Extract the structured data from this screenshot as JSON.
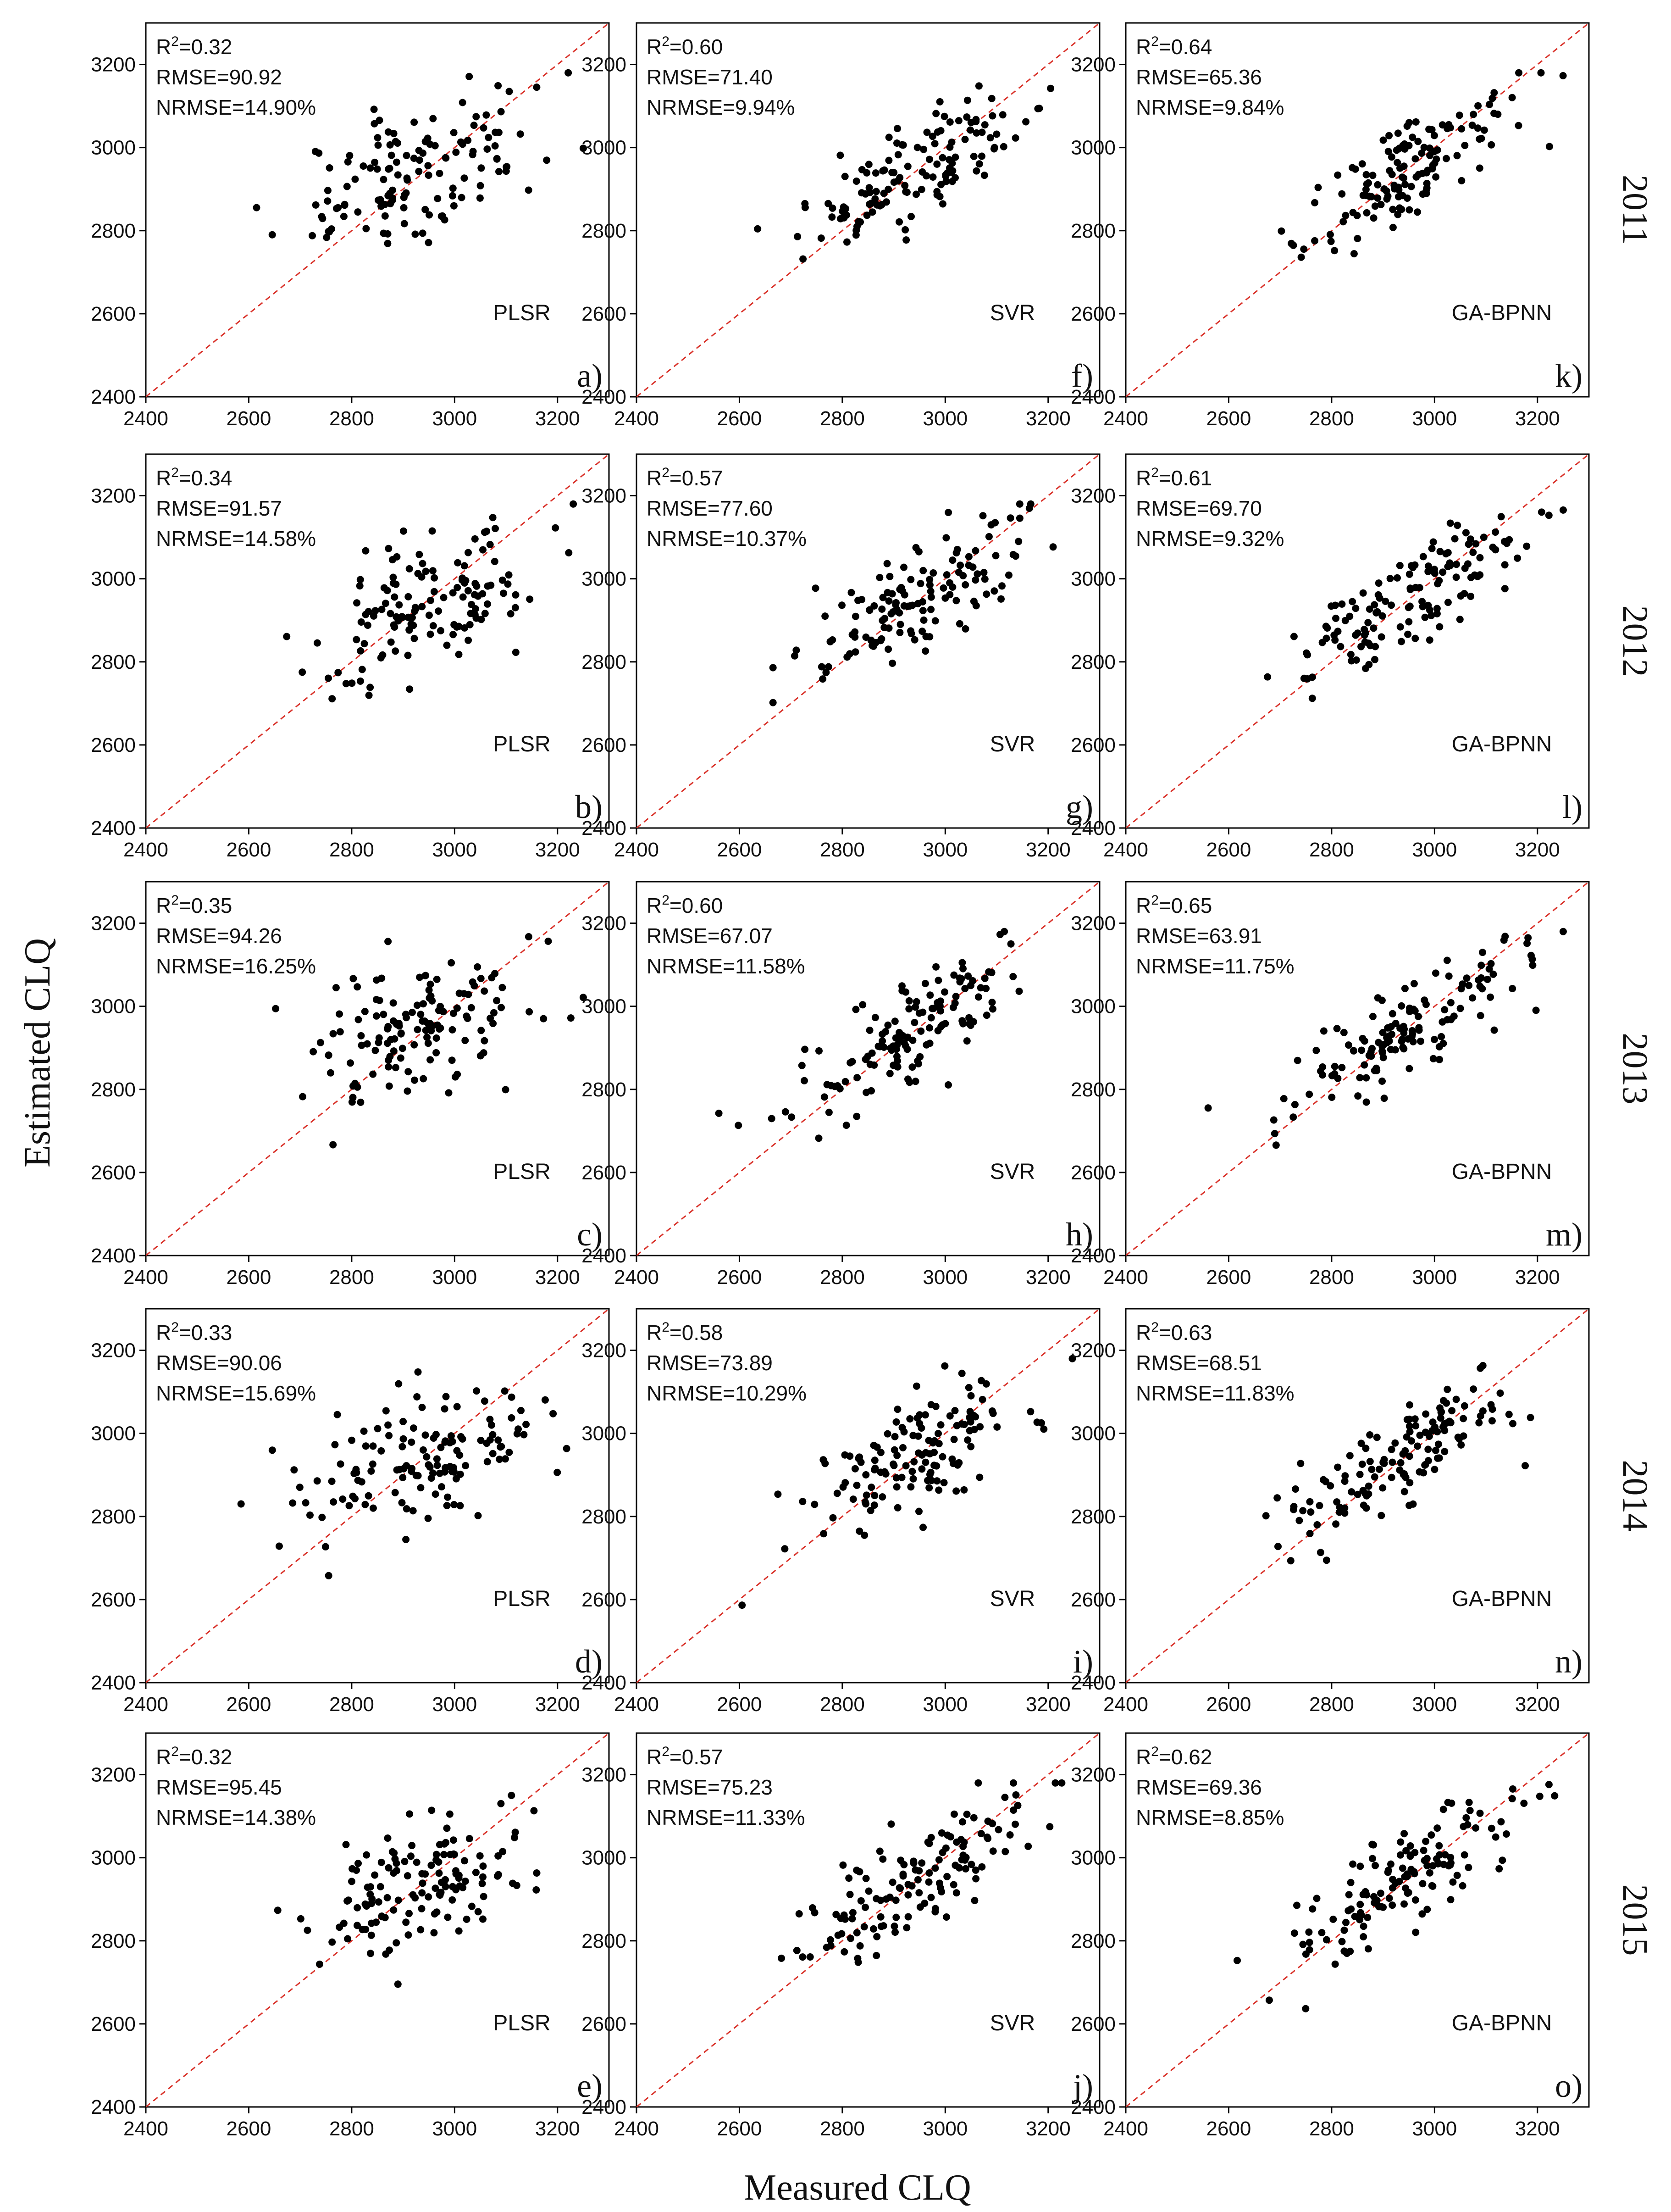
{
  "figure": {
    "xlabel": "Measured CLQ",
    "ylabel": "Estimated CLQ",
    "models": [
      "PLSR",
      "SVR",
      "GA-BPNN"
    ],
    "years": [
      "2011",
      "2012",
      "2013",
      "2014",
      "2015"
    ],
    "reference_line_color": "#d9322a",
    "point_color": "#000000"
  },
  "chart_data": [
    {
      "type": "scatter",
      "id": "a",
      "panel_label": "a)",
      "model": "PLSR",
      "year": "2011",
      "r2": "0.32",
      "rmse": "90.92",
      "nrmse": "14.90%",
      "r2_display": "R2=0.32",
      "rmse_display": "RMSE=90.92",
      "nrmse_display": "NRMSE=14.90%",
      "xlim": [
        2400,
        3300
      ],
      "ylim": [
        2400,
        3300
      ],
      "xticks": [
        2400,
        2600,
        2800,
        3000,
        3200
      ],
      "yticks": [
        2400,
        2600,
        2800,
        3000,
        3200
      ]
    },
    {
      "type": "scatter",
      "id": "b",
      "panel_label": "b)",
      "model": "PLSR",
      "year": "2012",
      "r2": "0.34",
      "rmse": "91.57",
      "nrmse": "14.58%",
      "r2_display": "R2=0.34",
      "rmse_display": "RMSE=91.57",
      "nrmse_display": "NRMSE=14.58%",
      "xlim": [
        2400,
        3300
      ],
      "ylim": [
        2400,
        3300
      ],
      "xticks": [
        2400,
        2600,
        2800,
        3000,
        3200
      ],
      "yticks": [
        2400,
        2600,
        2800,
        3000,
        3200
      ]
    },
    {
      "type": "scatter",
      "id": "c",
      "panel_label": "c)",
      "model": "PLSR",
      "year": "2013",
      "r2": "0.35",
      "rmse": "94.26",
      "nrmse": "16.25%",
      "r2_display": "R2=0.35",
      "rmse_display": "RMSE=94.26",
      "nrmse_display": "NRMSE=16.25%",
      "xlim": [
        2400,
        3300
      ],
      "ylim": [
        2400,
        3300
      ],
      "xticks": [
        2400,
        2600,
        2800,
        3000,
        3200
      ],
      "yticks": [
        2400,
        2600,
        2800,
        3000,
        3200
      ]
    },
    {
      "type": "scatter",
      "id": "d",
      "panel_label": "d)",
      "model": "PLSR",
      "year": "2014",
      "r2": "0.33",
      "rmse": "90.06",
      "nrmse": "15.69%",
      "r2_display": "R2=0.33",
      "rmse_display": "RMSE=90.06",
      "nrmse_display": "NRMSE=15.69%",
      "xlim": [
        2400,
        3300
      ],
      "ylim": [
        2400,
        3300
      ],
      "xticks": [
        2400,
        2600,
        2800,
        3000,
        3200
      ],
      "yticks": [
        2400,
        2600,
        2800,
        3000,
        3200
      ]
    },
    {
      "type": "scatter",
      "id": "e",
      "panel_label": "e)",
      "model": "PLSR",
      "year": "2015",
      "r2": "0.32",
      "rmse": "95.45",
      "nrmse": "14.38%",
      "r2_display": "R2=0.32",
      "rmse_display": "RMSE=95.45",
      "nrmse_display": "NRMSE=14.38%",
      "xlim": [
        2400,
        3300
      ],
      "ylim": [
        2400,
        3300
      ],
      "xticks": [
        2400,
        2600,
        2800,
        3000,
        3200
      ],
      "yticks": [
        2400,
        2600,
        2800,
        3000,
        3200
      ]
    },
    {
      "type": "scatter",
      "id": "f",
      "panel_label": "f)",
      "model": "SVR",
      "year": "2011",
      "r2": "0.60",
      "rmse": "71.40",
      "nrmse": "9.94%",
      "r2_display": "R2=0.60",
      "rmse_display": "RMSE=71.40",
      "nrmse_display": "NRMSE=9.94%",
      "xlim": [
        2400,
        3300
      ],
      "ylim": [
        2400,
        3300
      ],
      "xticks": [
        2400,
        2600,
        2800,
        3000,
        3200
      ],
      "yticks": [
        2400,
        2600,
        2800,
        3000,
        3200
      ]
    },
    {
      "type": "scatter",
      "id": "g",
      "panel_label": "g)",
      "model": "SVR",
      "year": "2012",
      "r2": "0.57",
      "rmse": "77.60",
      "nrmse": "10.37%",
      "r2_display": "R2=0.57",
      "rmse_display": "RMSE=77.60",
      "nrmse_display": "NRMSE=10.37%",
      "xlim": [
        2400,
        3300
      ],
      "ylim": [
        2400,
        3300
      ],
      "xticks": [
        2400,
        2600,
        2800,
        3000,
        3200
      ],
      "yticks": [
        2400,
        2600,
        2800,
        3000,
        3200
      ]
    },
    {
      "type": "scatter",
      "id": "h",
      "panel_label": "h)",
      "model": "SVR",
      "year": "2013",
      "r2": "0.60",
      "rmse": "67.07",
      "nrmse": "11.58%",
      "r2_display": "R2=0.60",
      "rmse_display": "RMSE=67.07",
      "nrmse_display": "NRMSE=11.58%",
      "xlim": [
        2400,
        3300
      ],
      "ylim": [
        2400,
        3300
      ],
      "xticks": [
        2400,
        2600,
        2800,
        3000,
        3200
      ],
      "yticks": [
        2400,
        2600,
        2800,
        3000,
        3200
      ]
    },
    {
      "type": "scatter",
      "id": "i",
      "panel_label": "i)",
      "model": "SVR",
      "year": "2014",
      "r2": "0.58",
      "rmse": "73.89",
      "nrmse": "10.29%",
      "r2_display": "R2=0.58",
      "rmse_display": "RMSE=73.89",
      "nrmse_display": "NRMSE=10.29%",
      "xlim": [
        2400,
        3300
      ],
      "ylim": [
        2400,
        3300
      ],
      "xticks": [
        2400,
        2600,
        2800,
        3000,
        3200
      ],
      "yticks": [
        2400,
        2600,
        2800,
        3000,
        3200
      ]
    },
    {
      "type": "scatter",
      "id": "j",
      "panel_label": "j)",
      "model": "SVR",
      "year": "2015",
      "r2": "0.57",
      "rmse": "75.23",
      "nrmse": "11.33%",
      "r2_display": "R2=0.57",
      "rmse_display": "RMSE=75.23",
      "nrmse_display": "NRMSE=11.33%",
      "xlim": [
        2400,
        3300
      ],
      "ylim": [
        2400,
        3300
      ],
      "xticks": [
        2400,
        2600,
        2800,
        3000,
        3200
      ],
      "yticks": [
        2400,
        2600,
        2800,
        3000,
        3200
      ]
    },
    {
      "type": "scatter",
      "id": "k",
      "panel_label": "k)",
      "model": "GA-BPNN",
      "year": "2011",
      "r2": "0.64",
      "rmse": "65.36",
      "nrmse": "9.84%",
      "r2_display": "R2=0.64",
      "rmse_display": "RMSE=65.36",
      "nrmse_display": "NRMSE=9.84%",
      "xlim": [
        2400,
        3300
      ],
      "ylim": [
        2400,
        3300
      ],
      "xticks": [
        2400,
        2600,
        2800,
        3000,
        3200
      ],
      "yticks": [
        2400,
        2600,
        2800,
        3000,
        3200
      ]
    },
    {
      "type": "scatter",
      "id": "l",
      "panel_label": "l)",
      "model": "GA-BPNN",
      "year": "2012",
      "r2": "0.61",
      "rmse": "69.70",
      "nrmse": "9.32%",
      "r2_display": "R2=0.61",
      "rmse_display": "RMSE=69.70",
      "nrmse_display": "NRMSE=9.32%",
      "xlim": [
        2400,
        3300
      ],
      "ylim": [
        2400,
        3300
      ],
      "xticks": [
        2400,
        2600,
        2800,
        3000,
        3200
      ],
      "yticks": [
        2400,
        2600,
        2800,
        3000,
        3200
      ]
    },
    {
      "type": "scatter",
      "id": "m",
      "panel_label": "m)",
      "model": "GA-BPNN",
      "year": "2013",
      "r2": "0.65",
      "rmse": "63.91",
      "nrmse": "11.75%",
      "r2_display": "R2=0.65",
      "rmse_display": "RMSE=63.91",
      "nrmse_display": "NRMSE=11.75%",
      "xlim": [
        2400,
        3300
      ],
      "ylim": [
        2400,
        3300
      ],
      "xticks": [
        2400,
        2600,
        2800,
        3000,
        3200
      ],
      "yticks": [
        2400,
        2600,
        2800,
        3000,
        3200
      ]
    },
    {
      "type": "scatter",
      "id": "n",
      "panel_label": "n)",
      "model": "GA-BPNN",
      "year": "2014",
      "r2": "0.63",
      "rmse": "68.51",
      "nrmse": "11.83%",
      "r2_display": "R2=0.63",
      "rmse_display": "RMSE=68.51",
      "nrmse_display": "NRMSE=11.83%",
      "xlim": [
        2400,
        3300
      ],
      "ylim": [
        2400,
        3300
      ],
      "xticks": [
        2400,
        2600,
        2800,
        3000,
        3200
      ],
      "yticks": [
        2400,
        2600,
        2800,
        3000,
        3200
      ]
    },
    {
      "type": "scatter",
      "id": "o",
      "panel_label": "o)",
      "model": "GA-BPNN",
      "year": "2015",
      "r2": "0.62",
      "rmse": "69.36",
      "nrmse": "8.85%",
      "r2_display": "R2=0.62",
      "rmse_display": "RMSE=69.36",
      "nrmse_display": "NRMSE=8.85%",
      "xlim": [
        2400,
        3300
      ],
      "ylim": [
        2400,
        3300
      ],
      "xticks": [
        2400,
        2600,
        2800,
        3000,
        3200
      ],
      "yticks": [
        2400,
        2600,
        2800,
        3000,
        3200
      ]
    }
  ]
}
